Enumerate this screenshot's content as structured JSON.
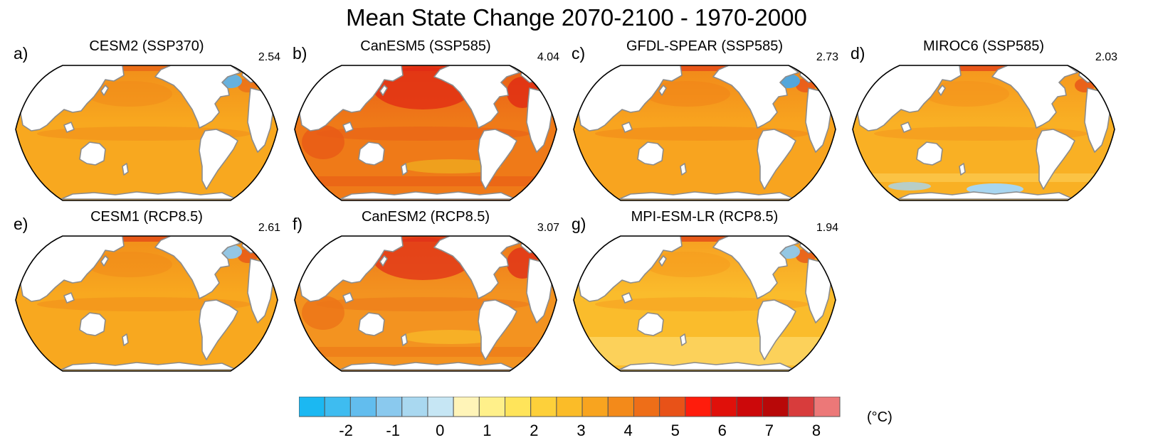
{
  "title": "Mean State Change 2070-2100 - 1970-2000",
  "panels": [
    {
      "label": "a)",
      "model": "CESM2 (SSP370)",
      "value": "2.54",
      "base": "#f8a81f",
      "warm": "#f08a19",
      "hot": "#e86018",
      "cool": "#5fb2e8",
      "style": "cesm2"
    },
    {
      "label": "b)",
      "model": "CanESM5 (SSP585)",
      "value": "4.04",
      "base": "#ef7a18",
      "warm": "#e85a16",
      "hot": "#e02a14",
      "cool": "#f0b020",
      "style": "canesm5"
    },
    {
      "label": "c)",
      "model": "GFDL-SPEAR (SSP585)",
      "value": "2.73",
      "base": "#f8a41f",
      "warm": "#f08418",
      "hot": "#e4401a",
      "cool": "#4aa8e6",
      "style": "gfdl"
    },
    {
      "label": "d)",
      "model": "MIROC6 (SSP585)",
      "value": "2.03",
      "base": "#f9b024",
      "warm": "#f4921c",
      "hot": "#e23a18",
      "cool": "#a8d6f0",
      "style": "miroc6"
    },
    {
      "label": "e)",
      "model": "CESM1 (RCP8.5)",
      "value": "2.61",
      "base": "#f8a81f",
      "warm": "#f08a19",
      "hot": "#e24018",
      "cool": "#8ec8ee",
      "style": "cesm1"
    },
    {
      "label": "f)",
      "model": "CanESM2 (RCP8.5)",
      "value": "3.07",
      "base": "#f39320",
      "warm": "#ec7418",
      "hot": "#e03018",
      "cool": "#f8bc2a",
      "style": "canesm2"
    },
    {
      "label": "g)",
      "model": "MPI-ESM-LR (RCP8.5)",
      "value": "1.94",
      "base": "#fabc2c",
      "warm": "#f69a1e",
      "hot": "#e03c18",
      "cool": "#8ec8ee",
      "style": "mpi"
    }
  ],
  "colorbar": {
    "unit": "(°C)",
    "colors": [
      "#1bb8f2",
      "#3ebcf0",
      "#62bdee",
      "#8ac9ee",
      "#a9d8f0",
      "#c6e6f4",
      "#fff4b8",
      "#fff08a",
      "#ffe45a",
      "#fdd03a",
      "#fbbc28",
      "#f8a41f",
      "#f38a1a",
      "#ee6e18",
      "#e85218",
      "#ff1c0c",
      "#e0100a",
      "#cc080a",
      "#b80808",
      "#d83c3c",
      "#ec7878"
    ],
    "tick_labels": [
      "-2",
      "-1",
      "0",
      "1",
      "2",
      "3",
      "4",
      "5",
      "6",
      "7",
      "8"
    ],
    "tick_values": [
      -2,
      -1,
      0,
      1,
      2,
      3,
      4,
      5,
      6,
      7,
      8
    ],
    "min": -3,
    "max": 8.5,
    "step": 0.5
  }
}
